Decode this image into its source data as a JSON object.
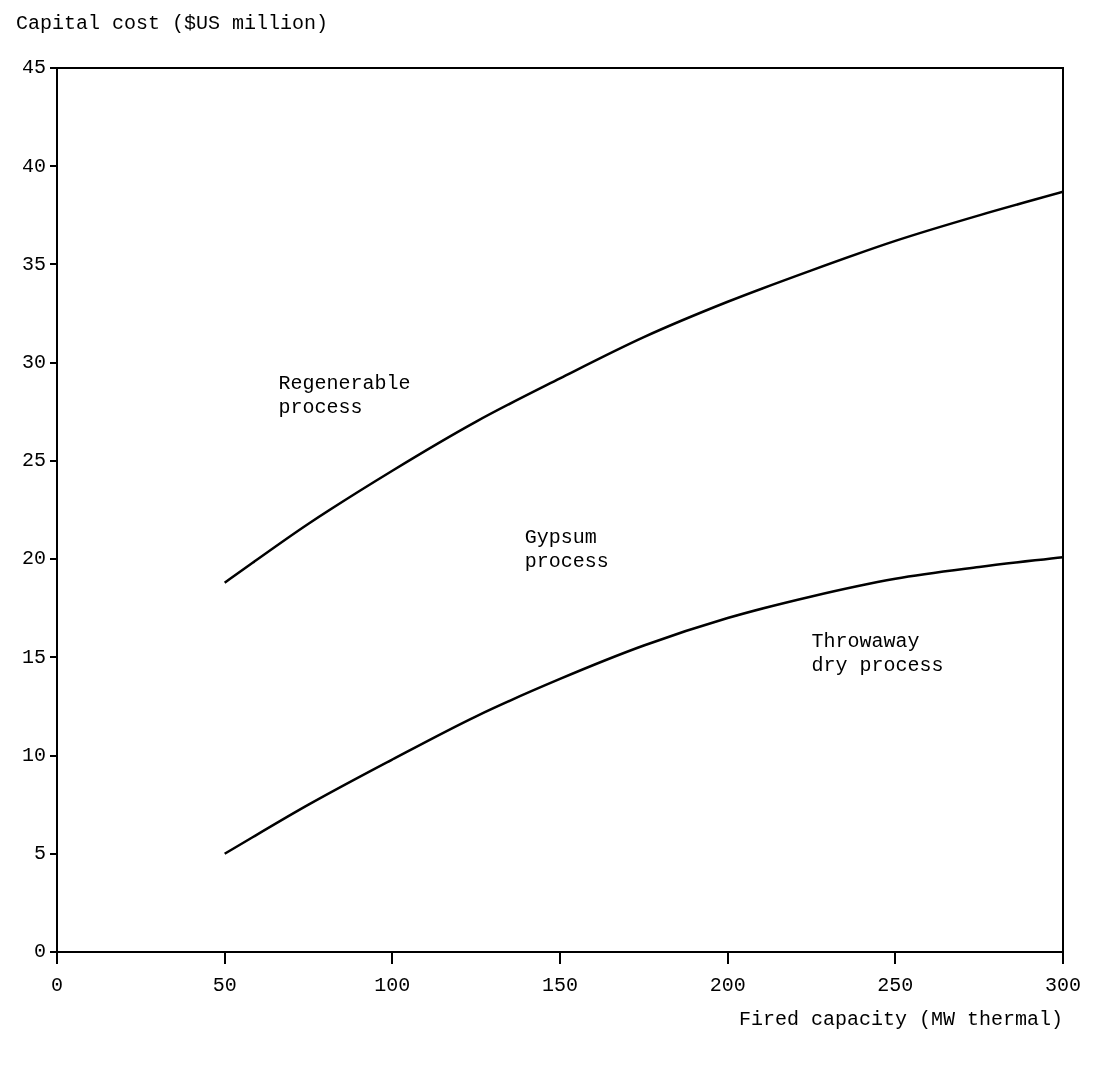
{
  "chart_data": {
    "type": "line",
    "xlabel": "Fired capacity (MW thermal)",
    "ylabel": "Capital cost ($US million)",
    "x": [
      50,
      75,
      100,
      125,
      150,
      175,
      200,
      225,
      250,
      275,
      300
    ],
    "series": [
      {
        "name": "Regenerable process",
        "color": "#000000",
        "values": [
          18.8,
          21.8,
          24.5,
          27,
          29.2,
          31.3,
          33.1,
          34.7,
          36.2,
          37.5,
          38.7
        ]
      },
      {
        "name": "Throwaway dry process",
        "color": "#000000",
        "values": [
          5,
          7.5,
          9.8,
          12,
          13.9,
          15.6,
          17,
          18.1,
          19,
          19.6,
          20.1
        ]
      }
    ],
    "annotations": [
      "Gypsum process"
    ],
    "xlim": [
      0,
      300
    ],
    "xticks": [
      0,
      50,
      100,
      150,
      200,
      250,
      300
    ],
    "ylim": [
      0,
      45
    ],
    "yticks": [
      0,
      5,
      10,
      15,
      20,
      25,
      30,
      35,
      40,
      45
    ],
    "grid": false,
    "legend": false,
    "marker": "none",
    "line_style": "solid"
  }
}
